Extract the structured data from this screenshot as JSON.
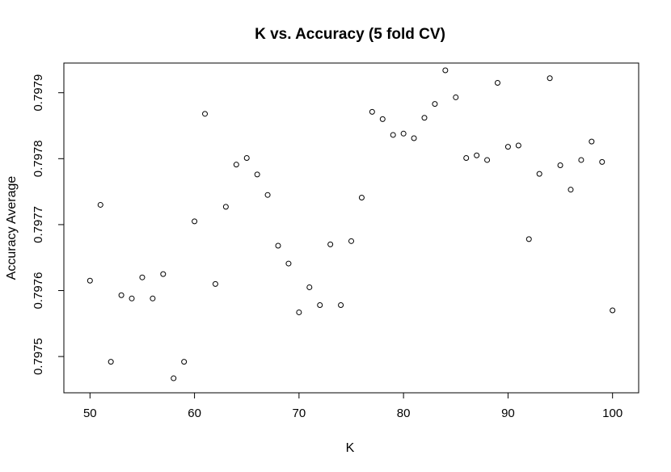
{
  "chart_data": {
    "type": "scatter",
    "title": "K vs. Accuracy (5 fold CV)",
    "xlabel": "K",
    "ylabel": "Accuracy Average",
    "xlim": [
      47.5,
      102.5
    ],
    "ylim": [
      0.797445,
      0.797945
    ],
    "x_ticks": [
      50,
      60,
      70,
      80,
      90,
      100
    ],
    "y_ticks": [
      0.7975,
      0.7976,
      0.7977,
      0.7978,
      0.7979
    ],
    "x_tick_labels": [
      "50",
      "60",
      "70",
      "80",
      "90",
      "100"
    ],
    "y_tick_labels": [
      "0.7975",
      "0.7976",
      "0.7977",
      "0.7978",
      "0.7979"
    ],
    "grid": false,
    "legend": "none",
    "marker": "open-circle",
    "x": [
      50,
      51,
      52,
      53,
      54,
      55,
      56,
      57,
      58,
      59,
      60,
      61,
      62,
      63,
      64,
      65,
      66,
      67,
      68,
      69,
      70,
      71,
      72,
      73,
      74,
      75,
      76,
      77,
      78,
      79,
      80,
      81,
      82,
      83,
      84,
      85,
      86,
      87,
      88,
      89,
      90,
      91,
      92,
      93,
      94,
      95,
      96,
      97,
      98,
      99,
      100
    ],
    "y": [
      0.797615,
      0.79773,
      0.797492,
      0.797593,
      0.797588,
      0.79762,
      0.797588,
      0.797625,
      0.797467,
      0.797492,
      0.797705,
      0.797868,
      0.79761,
      0.797727,
      0.797791,
      0.797801,
      0.797776,
      0.797745,
      0.797668,
      0.797641,
      0.797567,
      0.797605,
      0.797578,
      0.79767,
      0.797578,
      0.797675,
      0.797741,
      0.797871,
      0.79786,
      0.797836,
      0.797838,
      0.797831,
      0.797862,
      0.797883,
      0.797934,
      0.797893,
      0.797801,
      0.797805,
      0.797798,
      0.797915,
      0.797818,
      0.79782,
      0.797678,
      0.797777,
      0.797922,
      0.79779,
      0.797753,
      0.797798,
      0.797826,
      0.797795,
      0.79757
    ]
  }
}
